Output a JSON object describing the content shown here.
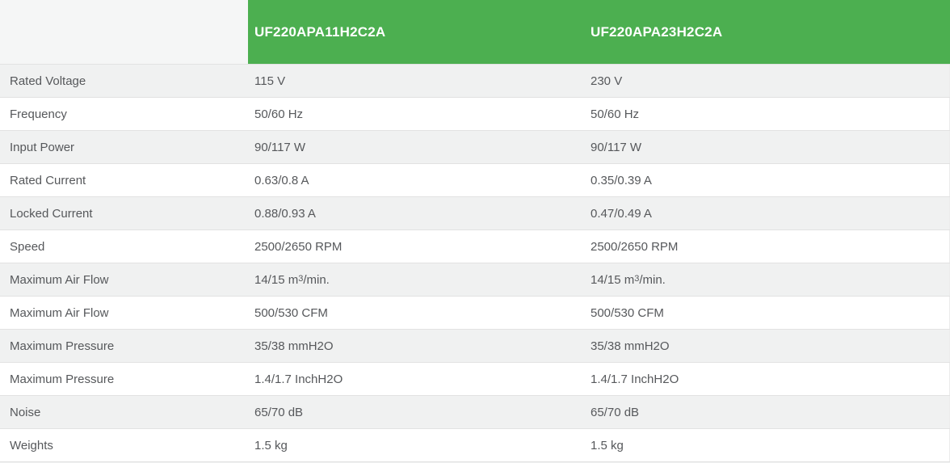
{
  "table": {
    "header": {
      "corner_label": "",
      "models": [
        "UF220APA11H2C2A",
        "UF220APA23H2C2A"
      ]
    },
    "rows": [
      {
        "label": "Rated Voltage",
        "values": [
          "115 V",
          "230 V"
        ]
      },
      {
        "label": "Frequency",
        "values": [
          "50/60 Hz",
          "50/60 Hz"
        ]
      },
      {
        "label": "Input Power",
        "values": [
          "90/117 W",
          "90/117 W"
        ]
      },
      {
        "label": "Rated Current",
        "values": [
          "0.63/0.8 A",
          "0.35/0.39 A"
        ]
      },
      {
        "label": "Locked Current",
        "values": [
          "0.88/0.93 A",
          "0.47/0.49 A"
        ]
      },
      {
        "label": "Speed",
        "values": [
          "2500/2650 RPM",
          "2500/2650 RPM"
        ]
      },
      {
        "label": "Maximum Air Flow",
        "values": [
          "14/15 m³/min.",
          "14/15 m³/min."
        ]
      },
      {
        "label": "Maximum Air Flow",
        "values": [
          "500/530 CFM",
          "500/530 CFM"
        ]
      },
      {
        "label": "Maximum Pressure",
        "values": [
          "35/38 mmH2O",
          "35/38 mmH2O"
        ]
      },
      {
        "label": "Maximum Pressure",
        "values": [
          "1.4/1.7 InchH2O",
          "1.4/1.7 InchH2O"
        ]
      },
      {
        "label": "Noise",
        "values": [
          "65/70 dB",
          "65/70 dB"
        ]
      },
      {
        "label": "Weights",
        "values": [
          "1.5 kg",
          "1.5 kg"
        ]
      }
    ],
    "colors": {
      "header_bg": "#4CAF50",
      "header_text": "#ffffff",
      "corner_bg": "#f5f6f6",
      "row_bg": "#ffffff",
      "row_alt_bg": "#f0f1f1",
      "row_border": "#e2e2e2",
      "text": "#56585b"
    }
  }
}
